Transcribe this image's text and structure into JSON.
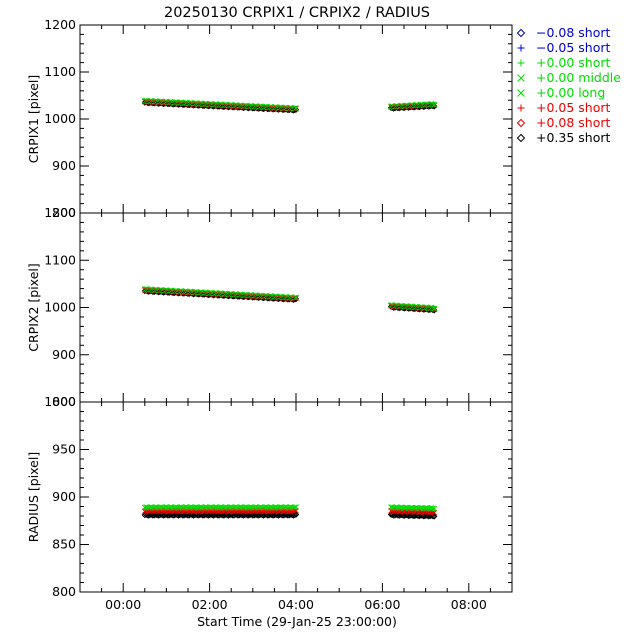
{
  "chart_data": {
    "title": "20250130 CRPIX1 / CRPIX2 / RADIUS",
    "xlabel": "Start Time (29-Jan-25 23:00:00)",
    "x_tick_labels": [
      "00:00",
      "02:00",
      "04:00",
      "06:00",
      "08:00"
    ],
    "legend": [
      {
        "label": "−0.08 short",
        "symbol": "diamond",
        "color": "#0000cc"
      },
      {
        "label": "−0.05 short",
        "symbol": "plus",
        "color": "#0000cc"
      },
      {
        "label": "+0.00 short",
        "symbol": "plus",
        "color": "#00dd00"
      },
      {
        "label": "+0.00 middle",
        "symbol": "cross",
        "color": "#00dd00"
      },
      {
        "label": "+0.00 long",
        "symbol": "cross",
        "color": "#00dd00"
      },
      {
        "label": "+0.05 short",
        "symbol": "plus",
        "color": "#ee0000"
      },
      {
        "label": "+0.08 short",
        "symbol": "diamond",
        "color": "#ee0000"
      },
      {
        "label": "+0.35 short",
        "symbol": "diamond",
        "color": "#000000"
      }
    ],
    "panels": [
      {
        "type": "scatter",
        "ylabel": "CRPIX1 [pixel]",
        "ylim": [
          800,
          1200
        ],
        "y_ticks": [
          800,
          900,
          1000,
          1100,
          1200
        ],
        "y_tick_labels": [
          "800",
          "900",
          "1000",
          "1100",
          "1200"
        ],
        "segments": [
          {
            "x_start": 0.5,
            "x_end": 4.0,
            "y_start": 1037,
            "y_end": 1021
          },
          {
            "x_start": 6.2,
            "x_end": 7.2,
            "y_start": 1025,
            "y_end": 1030
          }
        ]
      },
      {
        "type": "scatter",
        "ylabel": "CRPIX2 [pixel]",
        "ylim": [
          800,
          1200
        ],
        "y_ticks": [
          800,
          900,
          1000,
          1100,
          1200
        ],
        "y_tick_labels": [
          "800",
          "900",
          "1000",
          "1100",
          "1200"
        ],
        "segments": [
          {
            "x_start": 0.5,
            "x_end": 4.0,
            "y_start": 1037,
            "y_end": 1019
          },
          {
            "x_start": 6.2,
            "x_end": 7.2,
            "y_start": 1003,
            "y_end": 997
          }
        ]
      },
      {
        "type": "scatter",
        "ylabel": "RADIUS [pixel]",
        "ylim": [
          800,
          1000
        ],
        "y_ticks": [
          800,
          850,
          900,
          950,
          1000
        ],
        "y_tick_labels": [
          "800",
          "850",
          "900",
          "950",
          "1000"
        ],
        "segments": [
          {
            "x_start": 0.5,
            "x_end": 4.0,
            "y_start": 885,
            "y_end": 885
          },
          {
            "x_start": 6.2,
            "x_end": 7.2,
            "y_start": 885,
            "y_end": 884
          }
        ],
        "series_offsets": {
          "green": 4,
          "red": 0,
          "black": -4
        }
      }
    ],
    "xlim": [
      -1,
      9
    ]
  }
}
